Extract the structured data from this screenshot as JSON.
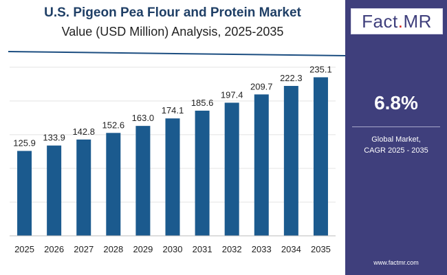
{
  "chart_data": {
    "type": "bar",
    "title": "U.S. Pigeon Pea Flour and Protein Market",
    "subtitle": "Value (USD Million) Analysis, 2025-2035",
    "categories": [
      "2025",
      "2026",
      "2027",
      "2028",
      "2029",
      "2030",
      "2031",
      "2032",
      "2033",
      "2034",
      "2035"
    ],
    "values": [
      125.9,
      133.9,
      142.8,
      152.6,
      163.0,
      174.1,
      185.6,
      197.4,
      209.7,
      222.3,
      235.1
    ],
    "value_labels": [
      "125.9",
      "133.9",
      "142.8",
      "152.6",
      "163.0",
      "174.1",
      "185.6",
      "197.4",
      "209.7",
      "222.3",
      "235.1"
    ],
    "ylim": [
      0,
      260
    ],
    "grid": true,
    "bar_color": "#1b5a8e"
  },
  "panel": {
    "logo_main": "Fact",
    "logo_dot": ".",
    "logo_end": "MR",
    "cagr_value": "6.8%",
    "cagr_label_line1": "Global Market,",
    "cagr_label_line2": "CAGR 2025 - 2035",
    "website": "www.factmr.com"
  },
  "colors": {
    "panel_bg": "#3f3f7c",
    "title_color": "#1f3f66",
    "accent_line": "#1b4d80"
  }
}
